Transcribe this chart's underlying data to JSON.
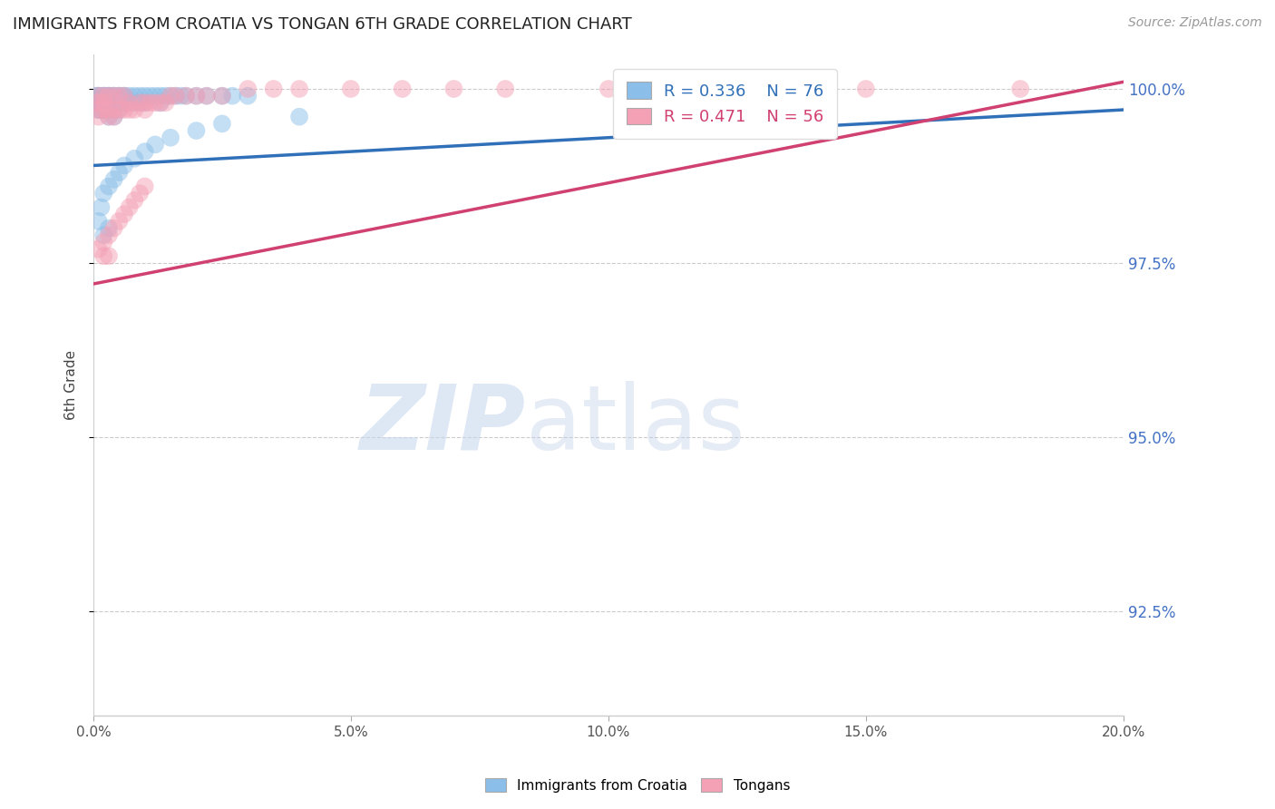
{
  "title": "IMMIGRANTS FROM CROATIA VS TONGAN 6TH GRADE CORRELATION CHART",
  "source": "Source: ZipAtlas.com",
  "ylabel": "6th Grade",
  "legend_blue_r": "0.336",
  "legend_blue_n": "76",
  "legend_pink_r": "0.471",
  "legend_pink_n": "56",
  "legend_blue_label": "Immigrants from Croatia",
  "legend_pink_label": "Tongans",
  "blue_color": "#8bbee8",
  "pink_color": "#f4a0b5",
  "blue_line_color": "#3070b8",
  "pink_line_color": "#d04070",
  "xlim": [
    0.0,
    0.2
  ],
  "ylim": [
    0.91,
    1.005
  ],
  "yticks": [
    1.0,
    0.975,
    0.95,
    0.925
  ],
  "xticks": [
    0.0,
    0.05,
    0.1,
    0.15,
    0.2
  ],
  "blue_x": [
    0.0005,
    0.001,
    0.001,
    0.001,
    0.001,
    0.001,
    0.001,
    0.0015,
    0.0015,
    0.0015,
    0.002,
    0.002,
    0.002,
    0.002,
    0.002,
    0.0025,
    0.0025,
    0.0025,
    0.003,
    0.003,
    0.003,
    0.003,
    0.003,
    0.003,
    0.0035,
    0.0035,
    0.004,
    0.004,
    0.004,
    0.004,
    0.004,
    0.005,
    0.005,
    0.005,
    0.005,
    0.006,
    0.006,
    0.006,
    0.007,
    0.007,
    0.008,
    0.008,
    0.009,
    0.009,
    0.01,
    0.01,
    0.011,
    0.012,
    0.013,
    0.013,
    0.014,
    0.015,
    0.016,
    0.017,
    0.018,
    0.02,
    0.022,
    0.025,
    0.027,
    0.03,
    0.001,
    0.0015,
    0.002,
    0.002,
    0.003,
    0.003,
    0.004,
    0.005,
    0.006,
    0.008,
    0.01,
    0.012,
    0.015,
    0.02,
    0.025,
    0.04
  ],
  "blue_y": [
    0.999,
    0.999,
    0.999,
    0.998,
    0.998,
    0.997,
    0.997,
    0.999,
    0.998,
    0.997,
    0.999,
    0.999,
    0.998,
    0.998,
    0.997,
    0.999,
    0.998,
    0.997,
    0.999,
    0.999,
    0.998,
    0.998,
    0.997,
    0.996,
    0.999,
    0.998,
    0.999,
    0.999,
    0.998,
    0.997,
    0.996,
    0.999,
    0.999,
    0.998,
    0.997,
    0.999,
    0.999,
    0.998,
    0.999,
    0.998,
    0.999,
    0.998,
    0.999,
    0.998,
    0.999,
    0.998,
    0.999,
    0.999,
    0.999,
    0.998,
    0.999,
    0.999,
    0.999,
    0.999,
    0.999,
    0.999,
    0.999,
    0.999,
    0.999,
    0.999,
    0.981,
    0.983,
    0.985,
    0.979,
    0.986,
    0.98,
    0.987,
    0.988,
    0.989,
    0.99,
    0.991,
    0.992,
    0.993,
    0.994,
    0.995,
    0.996
  ],
  "pink_x": [
    0.001,
    0.001,
    0.001,
    0.001,
    0.002,
    0.002,
    0.002,
    0.003,
    0.003,
    0.003,
    0.004,
    0.004,
    0.004,
    0.005,
    0.005,
    0.006,
    0.006,
    0.007,
    0.007,
    0.008,
    0.009,
    0.01,
    0.01,
    0.011,
    0.012,
    0.013,
    0.014,
    0.015,
    0.016,
    0.018,
    0.02,
    0.022,
    0.025,
    0.03,
    0.035,
    0.04,
    0.05,
    0.06,
    0.07,
    0.08,
    0.1,
    0.12,
    0.15,
    0.18,
    0.001,
    0.002,
    0.002,
    0.003,
    0.003,
    0.004,
    0.005,
    0.006,
    0.007,
    0.008,
    0.009,
    0.01
  ],
  "pink_y": [
    0.999,
    0.998,
    0.997,
    0.996,
    0.999,
    0.998,
    0.997,
    0.999,
    0.997,
    0.996,
    0.999,
    0.997,
    0.996,
    0.999,
    0.997,
    0.999,
    0.997,
    0.998,
    0.997,
    0.997,
    0.998,
    0.998,
    0.997,
    0.998,
    0.998,
    0.998,
    0.998,
    0.999,
    0.999,
    0.999,
    0.999,
    0.999,
    0.999,
    1.0,
    1.0,
    1.0,
    1.0,
    1.0,
    1.0,
    1.0,
    1.0,
    1.0,
    1.0,
    1.0,
    0.977,
    0.978,
    0.976,
    0.979,
    0.976,
    0.98,
    0.981,
    0.982,
    0.983,
    0.984,
    0.985,
    0.986
  ],
  "blue_trendline": [
    0.0,
    0.2,
    0.989,
    0.997
  ],
  "pink_trendline": [
    0.0,
    0.2,
    0.972,
    1.001
  ]
}
